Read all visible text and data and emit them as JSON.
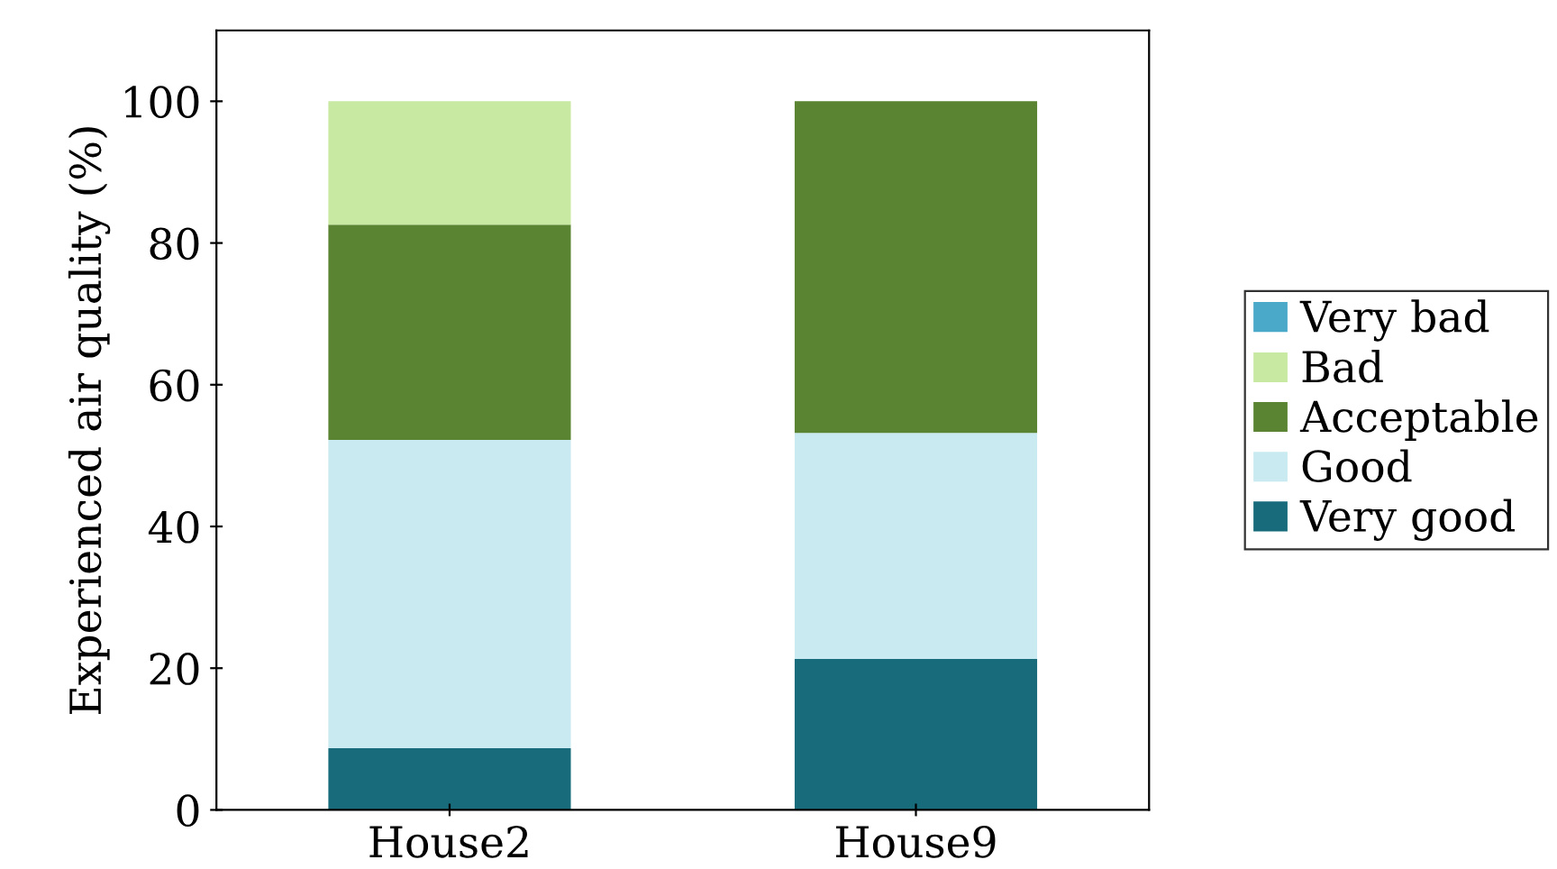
{
  "chart_data": {
    "type": "bar",
    "stacked": true,
    "ylabel": "Experienced air quality (%)",
    "categories": [
      "House2",
      "House9"
    ],
    "series": [
      {
        "name": "Very good",
        "color": "#176b7b",
        "values": [
          8.7,
          21.3
        ]
      },
      {
        "name": "Good",
        "color": "#c8eaf0",
        "values": [
          43.5,
          31.9
        ]
      },
      {
        "name": "Acceptable",
        "color": "#5a8431",
        "values": [
          30.4,
          46.8
        ]
      },
      {
        "name": "Bad",
        "color": "#c8e9a2",
        "values": [
          17.4,
          0
        ]
      },
      {
        "name": "Very bad",
        "color": "#4aa8c8",
        "values": [
          0,
          0
        ]
      }
    ],
    "ylim": [
      0,
      110
    ],
    "yticks": [
      0,
      20,
      40,
      60,
      80,
      100
    ],
    "grid": false,
    "legend": "right"
  }
}
